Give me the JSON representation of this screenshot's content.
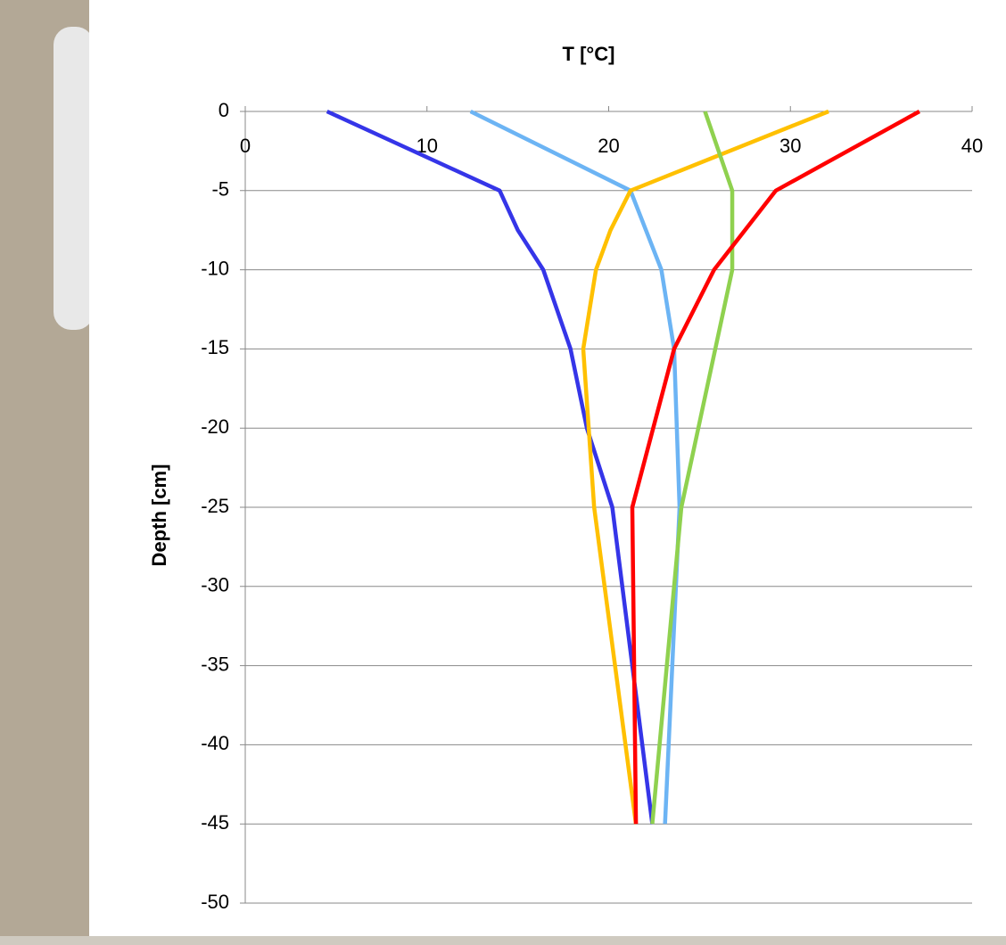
{
  "chart_data": {
    "type": "line",
    "title": "T [°C]",
    "y_label": "Depth [cm]",
    "xlim": [
      0,
      40
    ],
    "xticks": [
      0,
      10,
      20,
      30,
      40
    ],
    "ylim": [
      -50,
      0
    ],
    "yticks": [
      0,
      -5,
      -10,
      -15,
      -20,
      -25,
      -30,
      -35,
      -40,
      -45,
      -50
    ],
    "grid": true,
    "series": [
      {
        "color": "#3535e8",
        "x": [
          4.5,
          14.0,
          15.0,
          16.4,
          17.9,
          18.8,
          20.2,
          22.4
        ],
        "values": [
          0,
          -5,
          -7.5,
          -10,
          -15,
          -20,
          -25,
          -45
        ]
      },
      {
        "color": "#6cb4f4",
        "x": [
          12.4,
          21.2,
          22.9,
          23.6,
          23.9,
          23.1
        ],
        "values": [
          0,
          -5,
          -10,
          -15,
          -25,
          -45
        ]
      },
      {
        "color": "#ffc000",
        "x": [
          32.1,
          21.2,
          20.1,
          19.3,
          18.6,
          19.2,
          21.5
        ],
        "values": [
          0,
          -5,
          -7.5,
          -10,
          -15,
          -25,
          -45
        ]
      },
      {
        "color": "#8fd14f",
        "x": [
          25.3,
          26.8,
          26.8,
          24.0,
          22.4
        ],
        "values": [
          0,
          -5,
          -10,
          -25,
          -45
        ]
      },
      {
        "color": "#ff0000",
        "x": [
          37.1,
          29.2,
          25.8,
          23.6,
          21.3,
          21.5
        ],
        "values": [
          0,
          -5,
          -10,
          -15,
          -25,
          -45
        ]
      }
    ]
  }
}
